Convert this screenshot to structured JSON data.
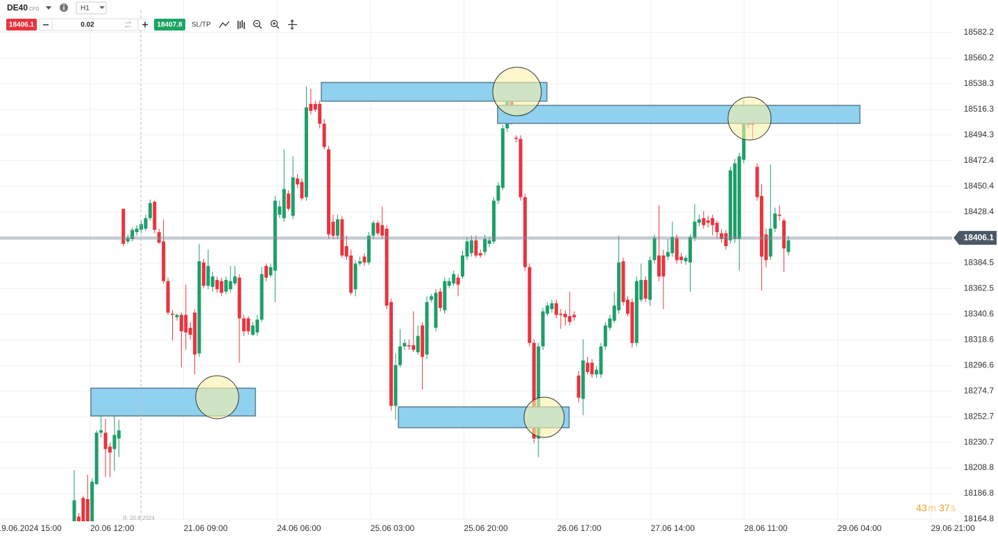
{
  "toolbar": {
    "symbol": "DE40",
    "symbol_type": "CFD",
    "timeframe": "H1",
    "sell_price": "18406.1",
    "volume": "0.02",
    "buy_price": "18407.8",
    "sltp": "SL/TP"
  },
  "chart_data": {
    "type": "candlestick",
    "up_color": "#1e9e6a",
    "down_color": "#e8343e",
    "grid": true,
    "ylim": [
      18164.8,
      18610.1
    ],
    "yticks": [
      18582.2,
      18560.2,
      18538.3,
      18516.3,
      18494.3,
      18472.4,
      18450.4,
      18428.4,
      18384.5,
      18362.5,
      18340.6,
      18318.6,
      18296.6,
      18274.7,
      18252.7,
      18230.7,
      18208.8,
      18186.8,
      18164.8
    ],
    "x_labels": [
      "19.06.2024 15:00",
      "20.06 12:00",
      "21.06 09:00",
      "24.06 06:00",
      "25.06 03:00",
      "25.06 20:00",
      "26.06 17:00",
      "27.06 14:00",
      "28.06 11:00",
      "29.06 04:00",
      "29.06 21:00"
    ],
    "current_price": {
      "value": 18406.1,
      "label": "18406.1"
    },
    "range_marker": "R: 20.6.2024",
    "timer": [
      "43",
      "m",
      "37",
      "s"
    ],
    "open": [
      18163,
      18167,
      18183,
      18182,
      18161,
      18195,
      18239,
      18239,
      18227,
      18225,
      18234,
      18431,
      18403,
      18405,
      18411,
      18413,
      18414,
      18423,
      18437,
      18411,
      18403,
      18369,
      18341,
      18338,
      18340,
      18340,
      18329,
      18342,
      18307,
      18385,
      18365,
      18364,
      18370,
      18369,
      18360,
      18362,
      18367,
      18372,
      18337,
      18337,
      18323,
      18325,
      18336,
      18382,
      18374,
      18378,
      18426,
      18423,
      18444,
      18425,
      18457,
      18454,
      18441,
      18521,
      18521,
      18521,
      18504,
      18482,
      18420,
      18408,
      18422,
      18399,
      18391,
      18362,
      18384,
      18390,
      18385,
      18408,
      18419,
      18417,
      18414,
      18351,
      18262,
      18297,
      18313,
      18314,
      18314,
      18308,
      18331,
      18306,
      18353,
      18329,
      18360,
      18344,
      18365,
      18367,
      18372,
      18373,
      18390,
      18393,
      18404,
      18393,
      18394,
      18401,
      18403,
      18438,
      18449,
      18500,
      18533,
      18492,
      18491,
      18441,
      18381,
      18316,
      18234,
      18313,
      18341,
      18345,
      18350,
      18341,
      18341,
      18339,
      18340,
      18288,
      18268,
      18299,
      18299,
      18289,
      18289,
      18313,
      18329,
      18335,
      18344,
      18386,
      18353,
      18351,
      18316,
      18353,
      18370,
      18353,
      18387,
      18391,
      18391,
      18390,
      18393,
      18406,
      18390,
      18386,
      18385,
      18406,
      18419,
      18423,
      18421,
      18423,
      18419,
      18410,
      18410,
      18404,
      18405,
      18405,
      18473,
      18504,
      18506,
      18467,
      18442,
      18409,
      18390,
      18414,
      18426,
      18421,
      18394
    ],
    "high": [
      18207,
      18170,
      18185,
      18203,
      18200,
      18241,
      18256,
      18251,
      18230,
      18253,
      18250,
      18431,
      18409,
      18415,
      18417,
      18421,
      18426,
      18439,
      18438,
      18414,
      18422,
      18372,
      18344,
      18341,
      18342,
      18366,
      18334,
      18345,
      18401,
      18388,
      18396,
      18377,
      18373,
      18372,
      18373,
      18382,
      18382,
      18375,
      18340,
      18339,
      18334,
      18340,
      18381,
      18384,
      18384,
      18442,
      18438,
      18482,
      18447,
      18476,
      18461,
      18457,
      18536,
      18534,
      18524,
      18524,
      18508,
      18485,
      18426,
      18426,
      18425,
      18408,
      18396,
      18387,
      18390,
      18393,
      18411,
      18421,
      18421,
      18433,
      18417,
      18354,
      18307,
      18328,
      18319,
      18319,
      18343,
      18331,
      18334,
      18356,
      18358,
      18362,
      18363,
      18372,
      18372,
      18378,
      18375,
      18395,
      18407,
      18408,
      18408,
      18396,
      18409,
      18407,
      18441,
      18454,
      18503,
      18540,
      18540,
      18494,
      18494,
      18444,
      18384,
      18319,
      18316,
      18346,
      18351,
      18353,
      18353,
      18345,
      18344,
      18360,
      18343,
      18292,
      18319,
      18304,
      18302,
      18296,
      18316,
      18334,
      18340,
      18360,
      18408,
      18389,
      18356,
      18354,
      18373,
      18384,
      18373,
      18390,
      18409,
      18434,
      18396,
      18405,
      18420,
      18409,
      18393,
      18391,
      18409,
      18435,
      18426,
      18429,
      18425,
      18426,
      18421,
      18413,
      18413,
      18467,
      18474,
      18479,
      18524,
      18516,
      18515,
      18470,
      18452,
      18414,
      18469,
      18432,
      18434,
      18423,
      18408
    ],
    "low": [
      18160,
      18161,
      18160,
      18160,
      18160,
      18194,
      18235,
      18201,
      18201,
      18206,
      18218,
      18399,
      18401,
      18403,
      18408,
      18410,
      18412,
      18421,
      18410,
      18401,
      18367,
      18340,
      18318,
      18335,
      18295,
      18310,
      18319,
      18289,
      18304,
      18363,
      18362,
      18360,
      18359,
      18356,
      18358,
      18359,
      18365,
      18299,
      18322,
      18323,
      18322,
      18322,
      18334,
      18369,
      18372,
      18351,
      18423,
      18420,
      18429,
      18422,
      18449,
      18438,
      18438,
      18512,
      18514,
      18500,
      18482,
      18405,
      18405,
      18405,
      18389,
      18387,
      18357,
      18356,
      18382,
      18382,
      18383,
      18405,
      18408,
      18405,
      18345,
      18258,
      18250,
      18295,
      18310,
      18310,
      18308,
      18306,
      18276,
      18302,
      18351,
      18326,
      18343,
      18341,
      18363,
      18365,
      18356,
      18371,
      18387,
      18390,
      18389,
      18389,
      18391,
      18398,
      18401,
      18435,
      18447,
      18497,
      18503,
      18488,
      18438,
      18378,
      18313,
      18230,
      18218,
      18310,
      18339,
      18342,
      18337,
      18328,
      18331,
      18331,
      18335,
      18265,
      18254,
      18289,
      18286,
      18286,
      18286,
      18310,
      18327,
      18333,
      18341,
      18348,
      18339,
      18312,
      18313,
      18351,
      18351,
      18348,
      18384,
      18369,
      18345,
      18387,
      18390,
      18384,
      18384,
      18383,
      18360,
      18403,
      18416,
      18414,
      18415,
      18408,
      18405,
      18402,
      18396,
      18401,
      18402,
      18378,
      18470,
      18500,
      18491,
      18438,
      18361,
      18381,
      18387,
      18411,
      18421,
      18377,
      18391
    ],
    "close": [
      18181,
      18163,
      18161,
      18161,
      18197,
      18239,
      18241,
      18225,
      18222,
      18237,
      18241,
      18401,
      18406,
      18413,
      18414,
      18418,
      18423,
      18436,
      18413,
      18402,
      18369,
      18342,
      18340,
      18340,
      18326,
      18325,
      18323,
      18306,
      18386,
      18365,
      18382,
      18373,
      18362,
      18359,
      18370,
      18369,
      18373,
      18337,
      18326,
      18326,
      18331,
      18336,
      18375,
      18372,
      18381,
      18438,
      18433,
      18448,
      18431,
      18458,
      18452,
      18440,
      18518,
      18515,
      18516,
      18504,
      18484,
      18409,
      18408,
      18422,
      18391,
      18390,
      18359,
      18384,
      18386,
      18385,
      18408,
      18419,
      18410,
      18408,
      18348,
      18262,
      18297,
      18313,
      18316,
      18313,
      18310,
      18322,
      18304,
      18351,
      18356,
      18359,
      18346,
      18369,
      18369,
      18375,
      18366,
      18391,
      18403,
      18404,
      18391,
      18391,
      18405,
      18404,
      18438,
      18451,
      18500,
      18533,
      18506,
      18491,
      18441,
      18381,
      18316,
      18234,
      18313,
      18343,
      18348,
      18350,
      18340,
      18340,
      18338,
      18334,
      18338,
      18269,
      18301,
      18291,
      18289,
      18293,
      18313,
      18331,
      18337,
      18348,
      18385,
      18351,
      18341,
      18316,
      18369,
      18370,
      18354,
      18387,
      18406,
      18373,
      18373,
      18394,
      18407,
      18387,
      18387,
      18389,
      18407,
      18420,
      18422,
      18417,
      18419,
      18417,
      18411,
      18405,
      18399,
      18464,
      18470,
      18476,
      18506,
      18503,
      18503,
      18441,
      18390,
      18387,
      18414,
      18427,
      18425,
      18397,
      18404
    ]
  }
}
